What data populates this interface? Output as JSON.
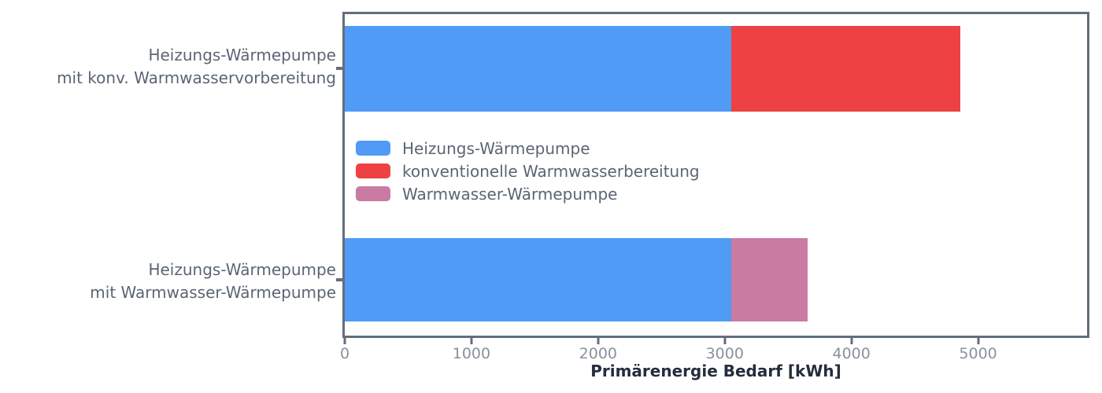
{
  "chart_data": {
    "type": "bar",
    "orientation": "horizontal",
    "title": "",
    "xlabel": "Primärenergie Bedarf [kWh]",
    "ylabel": "",
    "xlim": [
      0,
      5860
    ],
    "x_ticks": [
      0,
      1000,
      2000,
      3000,
      4000,
      5000
    ],
    "grid": false,
    "legend_position": "inside-center-left",
    "categories": [
      "Heizungs-Wärmepumpe\nmit konv. Warmwasservorbereitung",
      "Heizungs-Wärmepumpe\nmit Warmwasser-Wärmepumpe"
    ],
    "series": [
      {
        "name": "Heizungs-Wärmepumpe",
        "color": "#4f9bf5",
        "values": [
          3050,
          3050
        ]
      },
      {
        "name": "konventionelle Warmwasserbereitung",
        "color": "#ee4143",
        "values": [
          1810,
          0
        ]
      },
      {
        "name": "Warmwasser-Wärmepumpe",
        "color": "#c97ba2",
        "values": [
          0,
          605
        ]
      }
    ],
    "stacked_totals": [
      4860,
      3655
    ]
  },
  "colors": {
    "spine": "#646e7c",
    "tick_label": "#8a919d",
    "axis_label": "#232d3d",
    "category_label": "#5b6574",
    "legend_text": "#5b6574",
    "background": "#ffffff",
    "series_blue": "#4f9bf5",
    "series_red": "#ee4143",
    "series_pink": "#c97ba2"
  }
}
